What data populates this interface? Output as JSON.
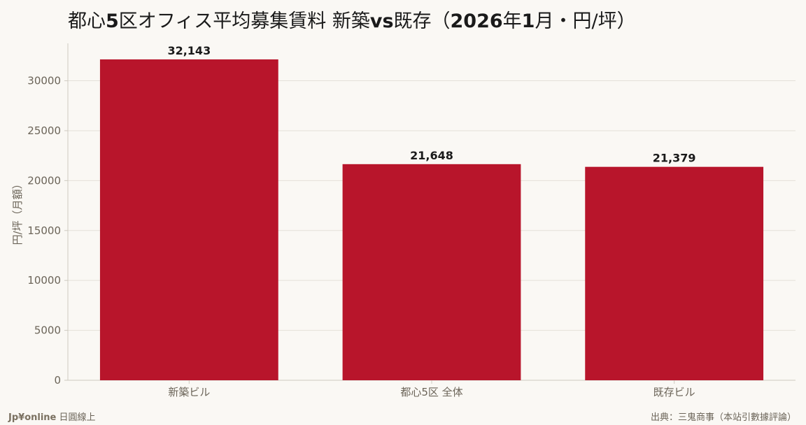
{
  "chart_data": {
    "type": "bar",
    "title_parts": [
      {
        "text": "都心",
        "bold": false
      },
      {
        "text": "5",
        "bold": true
      },
      {
        "text": "区オフィス平均募集賃料 新築",
        "bold": false
      },
      {
        "text": "vs",
        "bold": true
      },
      {
        "text": "既存（",
        "bold": false
      },
      {
        "text": "2026",
        "bold": true
      },
      {
        "text": "年",
        "bold": false
      },
      {
        "text": "1",
        "bold": true
      },
      {
        "text": "月・円/坪）",
        "bold": false
      }
    ],
    "categories": [
      "新築ビル",
      "都心5区 全体",
      "既存ビル"
    ],
    "values": [
      32143,
      21648,
      21379
    ],
    "value_labels": [
      "32,143",
      "21,648",
      "21,379"
    ],
    "ylabel": "円/坪（月額）",
    "xlabel": "",
    "ylim": [
      0,
      33750
    ],
    "yticks": [
      0,
      5000,
      10000,
      15000,
      20000,
      25000,
      30000
    ],
    "grid": true,
    "bar_color": "#b8152b",
    "grid_color": "#e4e0d8",
    "axis_color": "#cfcac0",
    "tick_text_color": "#6b6458"
  },
  "footer": {
    "brand": "Jp¥online",
    "brand_suffix": "日圓線上",
    "source": "出典：三鬼商事（本站引數據評論）"
  }
}
